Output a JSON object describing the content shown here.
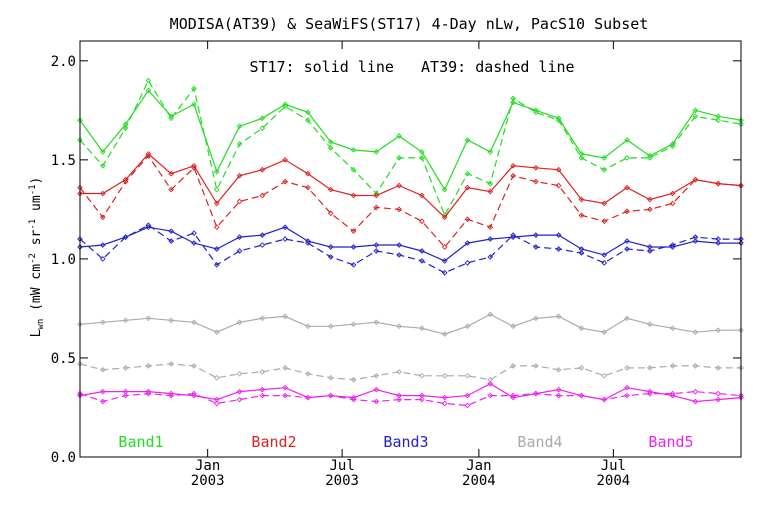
{
  "chart_data": {
    "type": "line",
    "title": "MODISA(AT39) & SeaWiFS(ST17) 4-Day nLw, PacS10 Subset",
    "note": "ST17: solid line   AT39: dashed line",
    "ylabel_main": "L",
    "ylabel_sub": "wn",
    "ylabel_rest": "(mW cm",
    "ylabel_exp1": "-2",
    "ylabel_mid1": " sr",
    "ylabel_exp2": "-1",
    "ylabel_mid2": " um",
    "ylabel_exp3": "-1",
    "ylabel_end": ")",
    "ylim": [
      0.0,
      2.1
    ],
    "xlim": [
      0,
      29
    ],
    "yticks": [
      {
        "value": 0.0,
        "label": "0.0"
      },
      {
        "value": 0.5,
        "label": "0.5"
      },
      {
        "value": 1.0,
        "label": "1.0"
      },
      {
        "value": 1.5,
        "label": "1.5"
      },
      {
        "value": 2.0,
        "label": "2.0"
      }
    ],
    "xticks": [
      {
        "value": 5.6,
        "month": "Jan",
        "year": "2003"
      },
      {
        "value": 11.5,
        "month": "Jul",
        "year": "2003"
      },
      {
        "value": 17.5,
        "month": "Jan",
        "year": "2004"
      },
      {
        "value": 23.4,
        "month": "Jul",
        "year": "2004"
      }
    ],
    "x": [
      0,
      1,
      2,
      3,
      4,
      5,
      6,
      7,
      8,
      9,
      10,
      11,
      12,
      13,
      14,
      15,
      16,
      17,
      18,
      19,
      20,
      21,
      22,
      23,
      24,
      25,
      26,
      27,
      28,
      29
    ],
    "series": [
      {
        "name": "Band1",
        "color": "#22dd22",
        "solid": [
          1.7,
          1.54,
          1.68,
          1.85,
          1.72,
          1.78,
          1.44,
          1.67,
          1.71,
          1.78,
          1.74,
          1.59,
          1.55,
          1.54,
          1.62,
          1.54,
          1.35,
          1.6,
          1.54,
          1.79,
          1.75,
          1.71,
          1.53,
          1.51,
          1.6,
          1.52,
          1.58,
          1.75,
          1.72,
          1.7
        ],
        "dashed": [
          1.6,
          1.47,
          1.66,
          1.9,
          1.71,
          1.86,
          1.35,
          1.58,
          1.66,
          1.77,
          1.7,
          1.56,
          1.45,
          1.33,
          1.51,
          1.51,
          1.22,
          1.43,
          1.38,
          1.81,
          1.74,
          1.7,
          1.51,
          1.45,
          1.51,
          1.51,
          1.57,
          1.72,
          1.7,
          1.68
        ]
      },
      {
        "name": "Band2",
        "color": "#dd2222",
        "solid": [
          1.33,
          1.33,
          1.4,
          1.53,
          1.43,
          1.47,
          1.28,
          1.42,
          1.45,
          1.5,
          1.43,
          1.35,
          1.32,
          1.32,
          1.37,
          1.32,
          1.21,
          1.36,
          1.34,
          1.47,
          1.46,
          1.45,
          1.3,
          1.28,
          1.36,
          1.3,
          1.33,
          1.4,
          1.38,
          1.37
        ],
        "dashed": [
          1.36,
          1.21,
          1.39,
          1.52,
          1.35,
          1.46,
          1.16,
          1.29,
          1.32,
          1.39,
          1.36,
          1.23,
          1.14,
          1.26,
          1.25,
          1.19,
          1.06,
          1.2,
          1.16,
          1.42,
          1.39,
          1.37,
          1.22,
          1.19,
          1.24,
          1.25,
          1.28,
          1.4,
          1.38,
          1.37
        ]
      },
      {
        "name": "Band3",
        "color": "#2222cc",
        "solid": [
          1.06,
          1.07,
          1.11,
          1.16,
          1.14,
          1.08,
          1.05,
          1.11,
          1.12,
          1.16,
          1.09,
          1.06,
          1.06,
          1.07,
          1.07,
          1.04,
          0.99,
          1.08,
          1.1,
          1.11,
          1.12,
          1.12,
          1.05,
          1.02,
          1.09,
          1.06,
          1.06,
          1.09,
          1.08,
          1.08
        ],
        "dashed": [
          1.1,
          1.0,
          1.11,
          1.17,
          1.09,
          1.13,
          0.97,
          1.04,
          1.07,
          1.1,
          1.08,
          1.01,
          0.97,
          1.04,
          1.02,
          0.99,
          0.93,
          0.98,
          1.01,
          1.12,
          1.06,
          1.05,
          1.03,
          0.98,
          1.05,
          1.04,
          1.07,
          1.11,
          1.1,
          1.1
        ]
      },
      {
        "name": "Band4",
        "color": "#aaaaaa",
        "solid": [
          0.67,
          0.68,
          0.69,
          0.7,
          0.69,
          0.68,
          0.63,
          0.68,
          0.7,
          0.71,
          0.66,
          0.66,
          0.67,
          0.68,
          0.66,
          0.65,
          0.62,
          0.66,
          0.72,
          0.66,
          0.7,
          0.71,
          0.65,
          0.63,
          0.7,
          0.67,
          0.65,
          0.63,
          0.64,
          0.64
        ],
        "dashed": [
          0.47,
          0.44,
          0.45,
          0.46,
          0.47,
          0.46,
          0.4,
          0.42,
          0.43,
          0.45,
          0.42,
          0.4,
          0.39,
          0.41,
          0.43,
          0.41,
          0.41,
          0.41,
          0.39,
          0.46,
          0.46,
          0.44,
          0.45,
          0.41,
          0.45,
          0.45,
          0.46,
          0.46,
          0.45,
          0.45
        ]
      },
      {
        "name": "Band5",
        "color": "#ee22ee",
        "solid": [
          0.31,
          0.33,
          0.33,
          0.33,
          0.32,
          0.31,
          0.29,
          0.33,
          0.34,
          0.35,
          0.3,
          0.31,
          0.3,
          0.34,
          0.31,
          0.31,
          0.3,
          0.31,
          0.37,
          0.3,
          0.32,
          0.34,
          0.31,
          0.29,
          0.35,
          0.33,
          0.31,
          0.28,
          0.29,
          0.3
        ],
        "dashed": [
          0.32,
          0.28,
          0.31,
          0.32,
          0.31,
          0.32,
          0.27,
          0.29,
          0.31,
          0.31,
          0.3,
          0.31,
          0.29,
          0.28,
          0.29,
          0.29,
          0.27,
          0.26,
          0.31,
          0.31,
          0.32,
          0.31,
          0.31,
          0.29,
          0.31,
          0.32,
          0.32,
          0.33,
          0.32,
          0.31
        ]
      }
    ]
  }
}
